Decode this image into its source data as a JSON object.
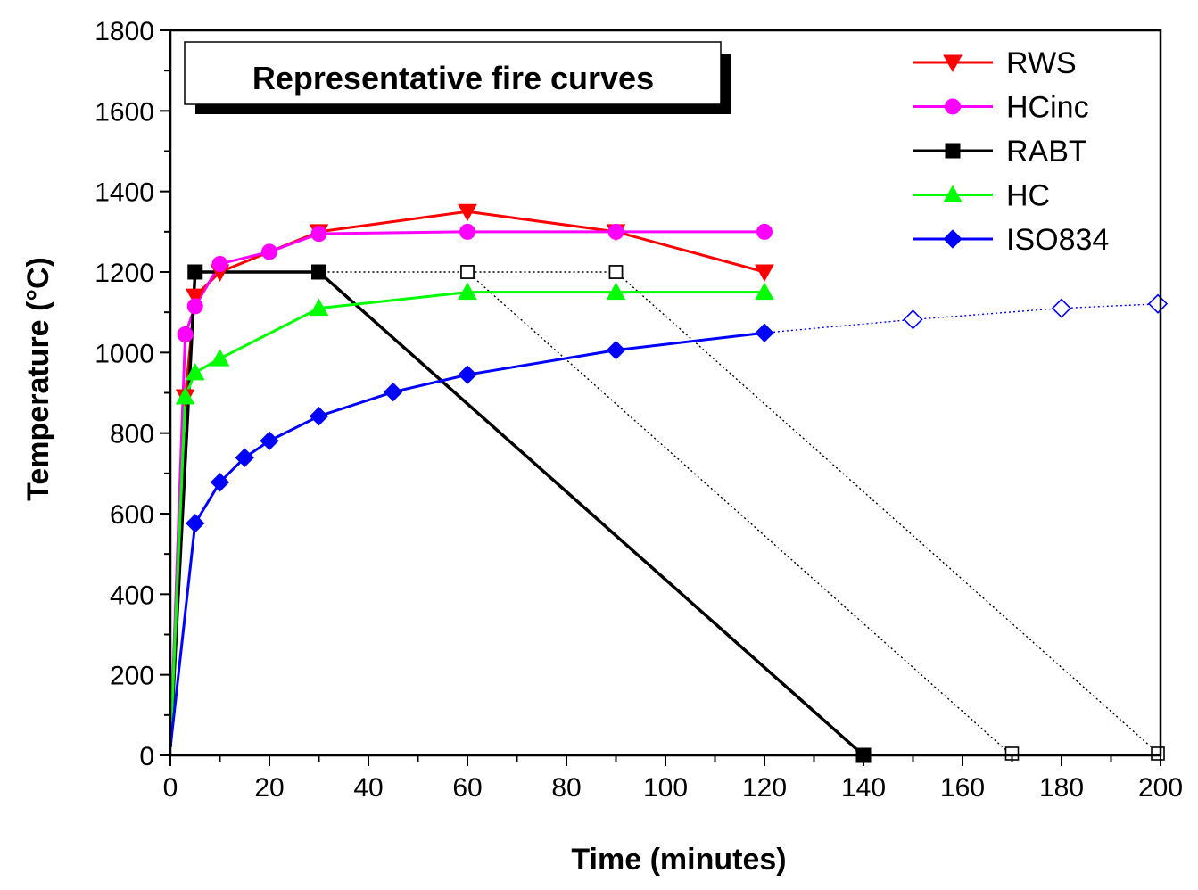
{
  "chart_data": {
    "type": "line",
    "title": "Representative fire curves",
    "xlabel": "Time (minutes)",
    "ylabel": "Temperature (°C)",
    "xlim": [
      0,
      200
    ],
    "ylim": [
      0,
      1800
    ],
    "xticks": [
      0,
      20,
      40,
      60,
      80,
      100,
      120,
      140,
      160,
      180,
      200
    ],
    "yticks": [
      0,
      200,
      400,
      600,
      800,
      1000,
      1200,
      1400,
      1600,
      1800
    ],
    "grid": false,
    "legend_position": "top-right",
    "series": [
      {
        "name": "RWS",
        "color": "#ff0000",
        "marker": "triangle-down",
        "x": [
          0,
          3,
          5,
          10,
          30,
          60,
          90,
          120
        ],
        "y": [
          20,
          890,
          1140,
          1200,
          1300,
          1350,
          1300,
          1200
        ]
      },
      {
        "name": "HCinc",
        "color": "#ff00ff",
        "marker": "circle",
        "x": [
          0,
          3,
          5,
          10,
          20,
          30,
          60,
          90,
          120
        ],
        "y": [
          20,
          1045,
          1115,
          1220,
          1250,
          1295,
          1300,
          1300,
          1300
        ]
      },
      {
        "name": "RABT",
        "color": "#000000",
        "marker": "square",
        "x": [
          0,
          5,
          30,
          140
        ],
        "y": [
          20,
          1200,
          1200,
          0
        ]
      },
      {
        "name": "HC",
        "color": "#00ff00",
        "marker": "triangle-up",
        "x": [
          0,
          3,
          5,
          10,
          30,
          60,
          90,
          120
        ],
        "y": [
          20,
          890,
          950,
          985,
          1110,
          1150,
          1150,
          1150
        ]
      },
      {
        "name": "ISO834",
        "color": "#0000ff",
        "marker": "diamond",
        "x": [
          0,
          5,
          10,
          15,
          20,
          30,
          45,
          60,
          90,
          120
        ],
        "y": [
          20,
          576,
          678,
          739,
          781,
          842,
          902,
          945,
          1006,
          1049
        ]
      }
    ],
    "extensions": [
      {
        "of": "RABT",
        "color": "#000000",
        "marker": "square-open",
        "x": [
          30,
          60,
          90
        ],
        "y": [
          1200,
          1200,
          1200
        ]
      },
      {
        "of": "RABT",
        "color": "#000000",
        "marker": "square-open",
        "x": [
          60,
          170
        ],
        "y": [
          1200,
          0
        ]
      },
      {
        "of": "RABT",
        "color": "#000000",
        "marker": "square-open",
        "x": [
          90,
          200
        ],
        "y": [
          1200,
          0
        ]
      },
      {
        "of": "ISO834",
        "color": "#0000ff",
        "marker": "diamond-open",
        "x": [
          120,
          150,
          180,
          200
        ],
        "y": [
          1049,
          1082,
          1110,
          1121
        ],
        "open_marker_count": 3
      }
    ]
  }
}
